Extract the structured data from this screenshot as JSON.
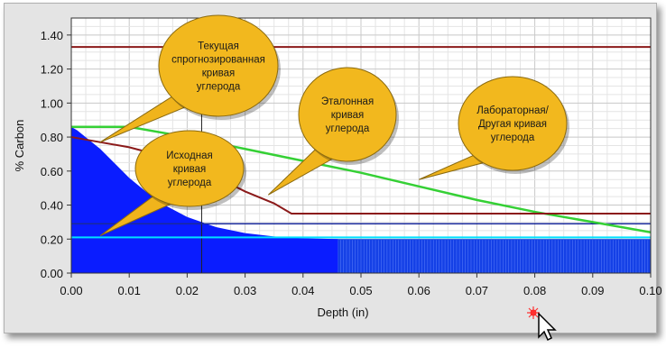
{
  "chart_data": {
    "type": "line",
    "xlabel": "Depth (in)",
    "ylabel": "% Carbon",
    "xlim": [
      0,
      0.1
    ],
    "ylim": [
      0,
      1.5
    ],
    "x_ticks": [
      "0.00",
      "0.01",
      "0.02",
      "0.03",
      "0.04",
      "0.05",
      "0.06",
      "0.07",
      "0.08",
      "0.09",
      "0.10"
    ],
    "y_ticks": [
      "0.00",
      "0.20",
      "0.40",
      "0.60",
      "0.80",
      "1.00",
      "1.20",
      "1.40"
    ],
    "grid": true,
    "series": [
      {
        "role": "initial-profile",
        "color": "#0a1cff",
        "x": [
          0,
          0.001,
          0.005,
          0.01,
          0.015,
          0.02,
          0.025,
          0.03,
          0.035,
          0.04,
          0.046
        ],
        "y": [
          0.86,
          0.84,
          0.73,
          0.56,
          0.42,
          0.33,
          0.27,
          0.235,
          0.215,
          0.205,
          0.2
        ]
      },
      {
        "role": "base-fill",
        "color": "#1440e6",
        "x": [
          0,
          0.1
        ],
        "y": [
          0.2,
          0.2
        ]
      },
      {
        "role": "limit-line",
        "color": "#8b1a1a",
        "x": [
          0,
          0.1
        ],
        "y": [
          1.33,
          1.33
        ]
      },
      {
        "role": "predicted-curve",
        "color": "#8b1a1a",
        "x": [
          0,
          0.01,
          0.02,
          0.03,
          0.035,
          0.038,
          0.04,
          0.1
        ],
        "y": [
          0.8,
          0.74,
          0.65,
          0.48,
          0.41,
          0.35,
          0.35,
          0.35
        ]
      },
      {
        "role": "reference-curve",
        "color": "#35d035",
        "x": [
          0,
          0.01,
          0.02,
          0.03,
          0.04,
          0.05,
          0.06,
          0.07,
          0.08,
          0.09,
          0.1
        ],
        "y": [
          0.86,
          0.86,
          0.8,
          0.73,
          0.66,
          0.59,
          0.51,
          0.43,
          0.36,
          0.3,
          0.24
        ]
      },
      {
        "role": "lab-line",
        "color": "#1a2a9a",
        "x": [
          0,
          0.1
        ],
        "y": [
          0.29,
          0.29
        ]
      },
      {
        "role": "lab-line-2",
        "color": "#00e0ff",
        "x": [
          0,
          0.1
        ],
        "y": [
          0.21,
          0.21
        ]
      }
    ],
    "callouts": [
      {
        "lines": [
          "Текущая",
          "спрогнозированная",
          "кривая",
          "углерода"
        ],
        "tip": [
          0.005,
          0.77
        ]
      },
      {
        "lines": [
          "Исходная",
          "кривая",
          "углерода"
        ],
        "tip": [
          0.005,
          0.22
        ]
      },
      {
        "lines": [
          "Эталонная",
          "кривая",
          "углерода"
        ],
        "tip": [
          0.034,
          0.46
        ]
      },
      {
        "lines": [
          "Лабораторная/",
          "Другая кривая",
          "углерода"
        ],
        "tip": [
          0.06,
          0.55
        ]
      }
    ]
  }
}
